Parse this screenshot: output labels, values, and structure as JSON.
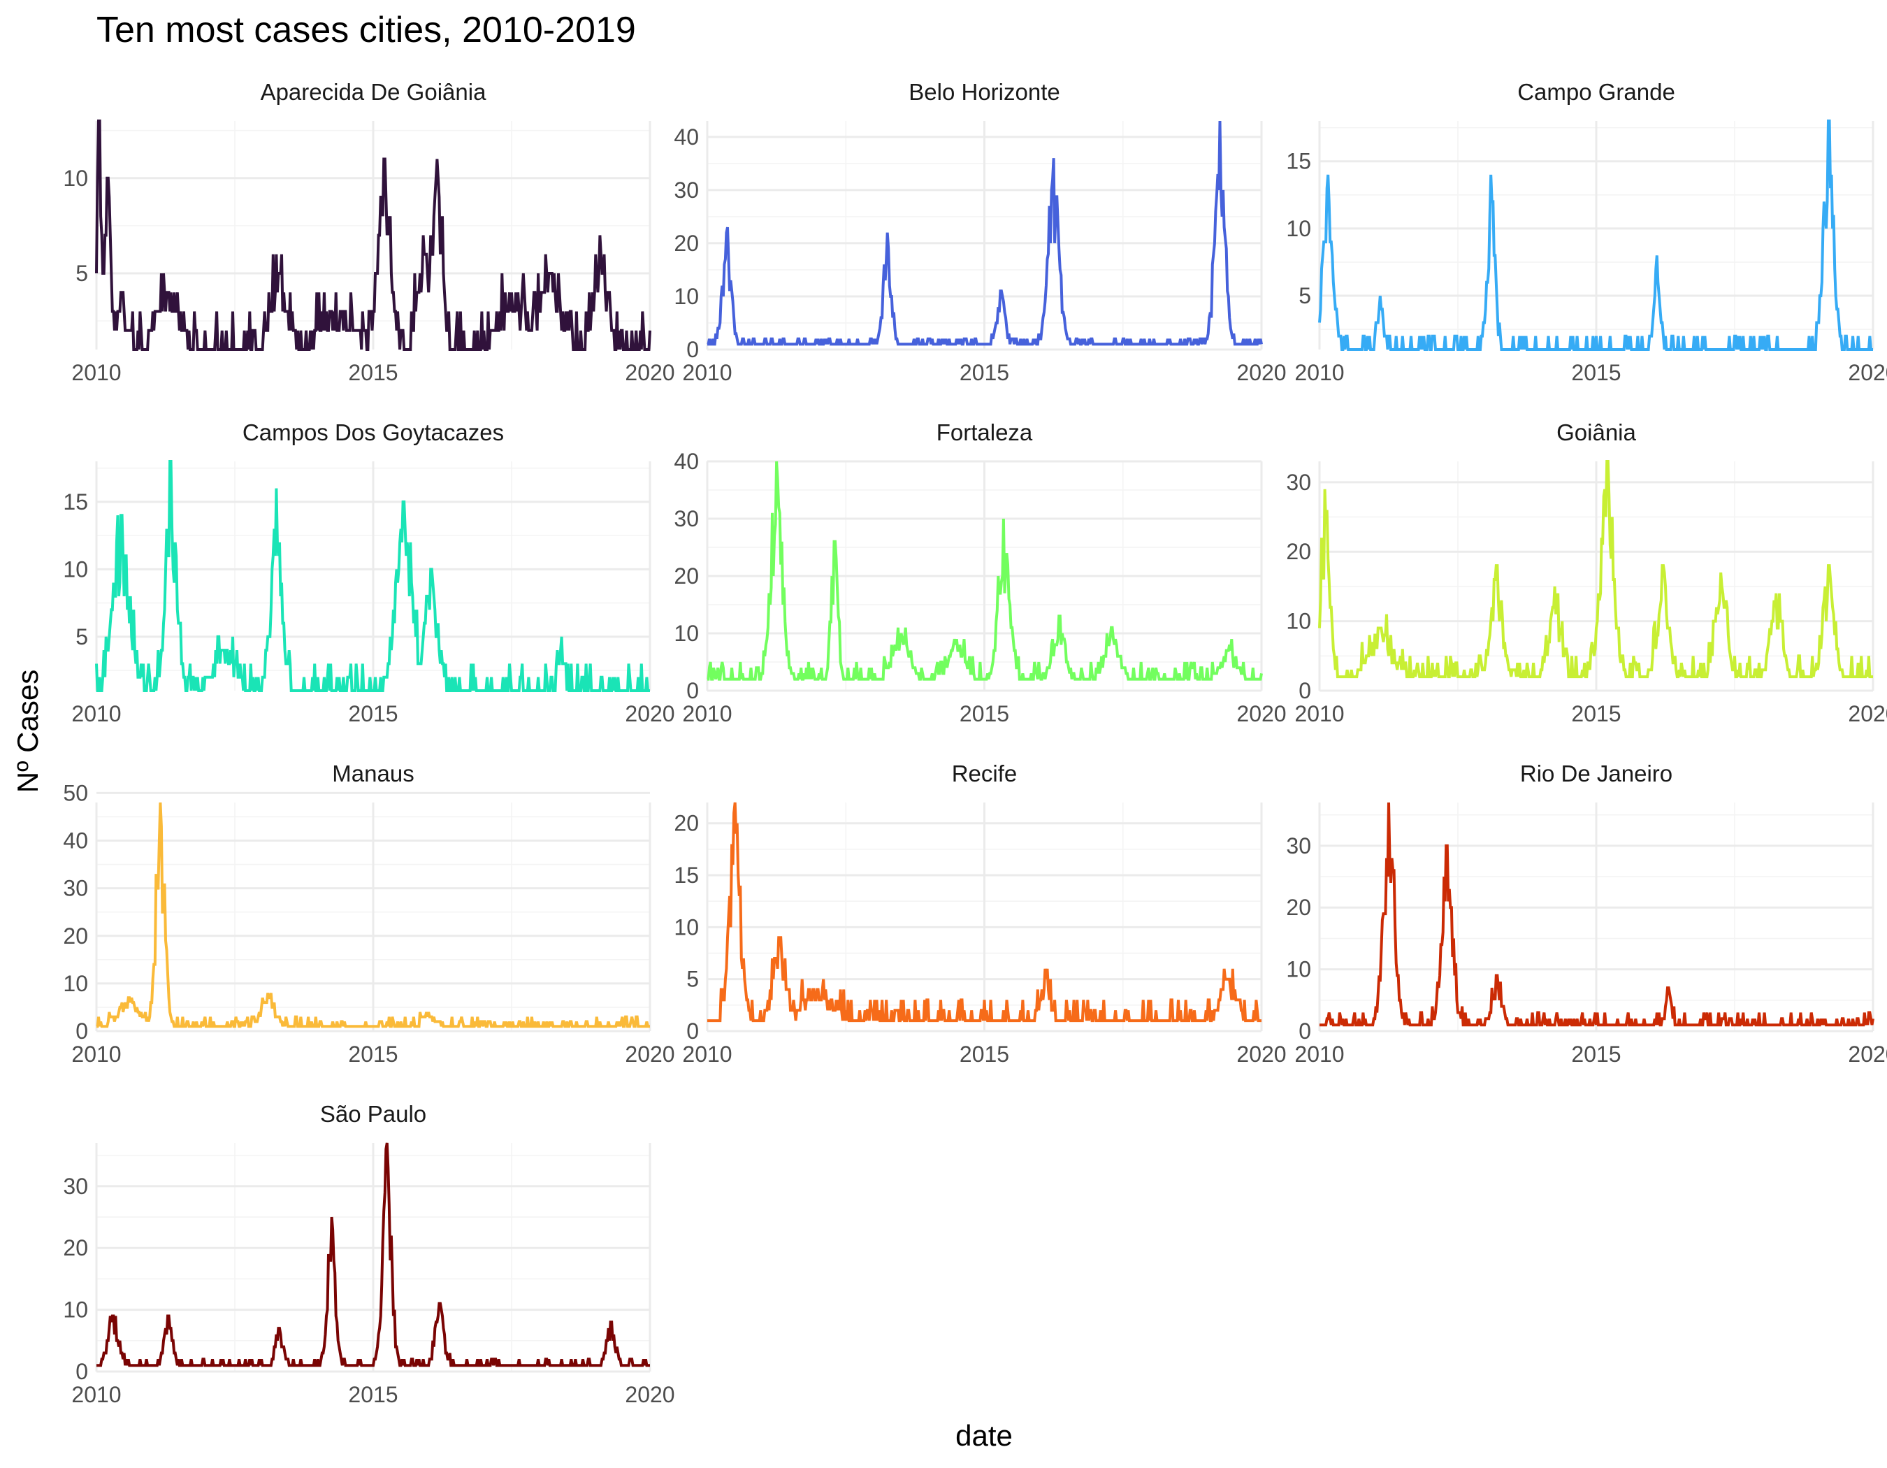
{
  "chart_data": {
    "type": "line",
    "title": "Ten most cases cities, 2010-2019",
    "xlabel": "date",
    "ylabel": "Nº Cases",
    "x_ticks": [
      "2010",
      "2015",
      "2020"
    ],
    "xlim": [
      "2010-01",
      "2020-01"
    ],
    "panels": [
      {
        "name": "Aparecida De Goiânia",
        "color": "#30123b",
        "y_ticks": [
          5,
          10
        ],
        "ylim": [
          1,
          13
        ],
        "baseline": 1,
        "noise": 2,
        "peaks": [
          [
            2010.05,
            13,
            0.05
          ],
          [
            2010.2,
            10,
            0.06
          ],
          [
            2010.45,
            4,
            0.1
          ],
          [
            2011.3,
            4,
            0.2
          ],
          [
            2013.3,
            5,
            0.15
          ],
          [
            2014.4,
            3,
            0.3
          ],
          [
            2015.2,
            11,
            0.12
          ],
          [
            2015.9,
            7,
            0.1
          ],
          [
            2016.15,
            11,
            0.1
          ],
          [
            2017.5,
            4,
            0.25
          ],
          [
            2018.2,
            5,
            0.2
          ],
          [
            2019.1,
            7,
            0.12
          ]
        ]
      },
      {
        "name": "Belo Horizonte",
        "color": "#4661db",
        "y_ticks": [
          0,
          10,
          20,
          30,
          40
        ],
        "ylim": [
          0,
          43
        ],
        "baseline": 1,
        "noise": 1,
        "peaks": [
          [
            2010.35,
            22,
            0.08
          ],
          [
            2013.25,
            22,
            0.07
          ],
          [
            2015.3,
            11,
            0.07
          ],
          [
            2016.25,
            36,
            0.1
          ],
          [
            2019.25,
            43,
            0.09
          ]
        ]
      },
      {
        "name": "Campo Grande",
        "color": "#36abf5",
        "y_ticks": [
          5,
          10,
          15
        ],
        "ylim": [
          1,
          18
        ],
        "baseline": 1,
        "noise": 1,
        "peaks": [
          [
            2010.15,
            14,
            0.1
          ],
          [
            2011.1,
            5,
            0.06
          ],
          [
            2013.1,
            14,
            0.07
          ],
          [
            2016.1,
            8,
            0.06
          ],
          [
            2019.2,
            18,
            0.09
          ]
        ]
      },
      {
        "name": "Campos Dos Goytacazes",
        "color": "#1ae4b6",
        "y_ticks": [
          5,
          10,
          15
        ],
        "ylim": [
          1,
          18
        ],
        "baseline": 1,
        "noise": 2,
        "peaks": [
          [
            2010.45,
            14,
            0.15
          ],
          [
            2011.35,
            18,
            0.1
          ],
          [
            2012.3,
            4,
            0.2
          ],
          [
            2013.25,
            16,
            0.1
          ],
          [
            2015.55,
            15,
            0.15
          ],
          [
            2016.05,
            10,
            0.12
          ],
          [
            2018.4,
            5,
            0.05
          ]
        ]
      },
      {
        "name": "Fortaleza",
        "color": "#72fe5e",
        "y_ticks": [
          0,
          10,
          20,
          30,
          40
        ],
        "ylim": [
          0,
          40
        ],
        "baseline": 2,
        "noise": 3,
        "peaks": [
          [
            2011.25,
            40,
            0.1
          ],
          [
            2012.3,
            26,
            0.06
          ],
          [
            2013.5,
            10,
            0.15
          ],
          [
            2014.5,
            9,
            0.15
          ],
          [
            2015.35,
            30,
            0.1
          ],
          [
            2016.35,
            13,
            0.1
          ],
          [
            2017.3,
            11,
            0.12
          ],
          [
            2019.4,
            7,
            0.15
          ]
        ]
      },
      {
        "name": "Goiânia",
        "color": "#c8ef34",
        "y_ticks": [
          0,
          10,
          20,
          30
        ],
        "ylim": [
          0,
          33
        ],
        "baseline": 2,
        "noise": 3,
        "peaks": [
          [
            2010.1,
            29,
            0.08
          ],
          [
            2011.1,
            9,
            0.2
          ],
          [
            2013.2,
            18,
            0.1
          ],
          [
            2014.25,
            15,
            0.1
          ],
          [
            2015.2,
            33,
            0.12
          ],
          [
            2016.2,
            18,
            0.1
          ],
          [
            2017.25,
            17,
            0.1
          ],
          [
            2018.25,
            14,
            0.1
          ],
          [
            2019.2,
            18,
            0.1
          ]
        ]
      },
      {
        "name": "Manaus",
        "color": "#faba39",
        "y_ticks": [
          0,
          10,
          20,
          30,
          40,
          50
        ],
        "ylim": [
          0,
          48
        ],
        "baseline": 1,
        "noise": 2,
        "peaks": [
          [
            2010.6,
            7,
            0.2
          ],
          [
            2011.15,
            48,
            0.08
          ],
          [
            2013.1,
            8,
            0.12
          ],
          [
            2016.0,
            4,
            0.1
          ]
        ]
      },
      {
        "name": "Recife",
        "color": "#f66b19",
        "y_ticks": [
          0,
          5,
          10,
          15,
          20
        ],
        "ylim": [
          0,
          22
        ],
        "baseline": 1,
        "noise": 2,
        "peaks": [
          [
            2010.5,
            22,
            0.1
          ],
          [
            2011.3,
            9,
            0.12
          ],
          [
            2012.0,
            4,
            0.25
          ],
          [
            2016.1,
            6,
            0.08
          ],
          [
            2019.4,
            5,
            0.15
          ]
        ]
      },
      {
        "name": "Rio De Janeiro",
        "color": "#cb2a04",
        "y_ticks": [
          0,
          10,
          20,
          30
        ],
        "ylim": [
          0,
          37
        ],
        "baseline": 1,
        "noise": 2,
        "peaks": [
          [
            2011.25,
            37,
            0.1
          ],
          [
            2012.3,
            30,
            0.1
          ],
          [
            2013.2,
            9,
            0.08
          ],
          [
            2016.3,
            7,
            0.05
          ]
        ]
      },
      {
        "name": "São Paulo",
        "color": "#7a0403",
        "y_ticks": [
          0,
          10,
          20,
          30
        ],
        "ylim": [
          0,
          37
        ],
        "baseline": 1,
        "noise": 1,
        "peaks": [
          [
            2010.3,
            9,
            0.1
          ],
          [
            2011.3,
            9,
            0.07
          ],
          [
            2013.3,
            7,
            0.07
          ],
          [
            2014.25,
            25,
            0.07
          ],
          [
            2015.25,
            37,
            0.08
          ],
          [
            2016.2,
            11,
            0.08
          ],
          [
            2019.3,
            8,
            0.08
          ]
        ]
      }
    ]
  }
}
